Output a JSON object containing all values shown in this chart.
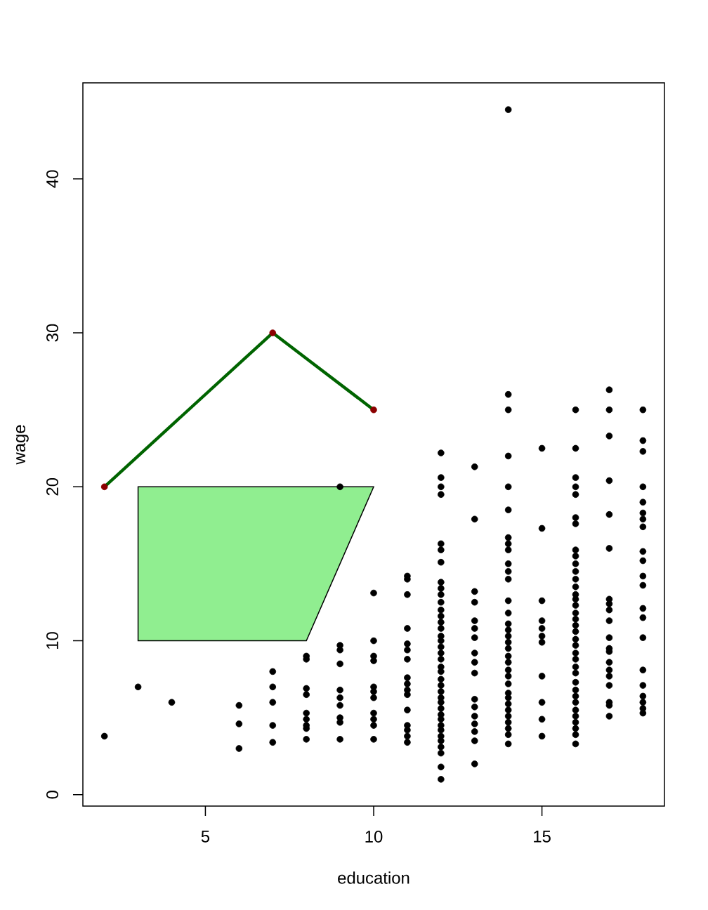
{
  "chart_data": {
    "type": "scatter",
    "xlabel": "education",
    "ylabel": "wage",
    "xlim": [
      1.36,
      18.64
    ],
    "ylim": [
      -0.74,
      46.24
    ],
    "xticks": [
      5,
      10,
      15
    ],
    "yticks": [
      0,
      10,
      20,
      30,
      40
    ],
    "series": [
      {
        "type": "area",
        "color": "#90ee90",
        "x": [
          3,
          3,
          10,
          8
        ],
        "values": [
          10,
          20,
          20,
          10
        ]
      },
      {
        "color": "#000000",
        "marker": "circle",
        "x": [
          2,
          3,
          4,
          6,
          6,
          6,
          7,
          7,
          7,
          7,
          7,
          8,
          8,
          8,
          8,
          8,
          8,
          8,
          8,
          8,
          9,
          9,
          9,
          9,
          9,
          9,
          9,
          9,
          9,
          9,
          10,
          10,
          10,
          10,
          10,
          10,
          10,
          10,
          10,
          10,
          10,
          11,
          11,
          11,
          11,
          11,
          11,
          11,
          11,
          11,
          11,
          11,
          11,
          11,
          11,
          11,
          11,
          12,
          12,
          12,
          12,
          12,
          12,
          12,
          12,
          12,
          12,
          12,
          12,
          12,
          12,
          12,
          12,
          12,
          12,
          12,
          12,
          12,
          12,
          12,
          12,
          12,
          12,
          12,
          12,
          12,
          12,
          12,
          12,
          12,
          12,
          12,
          12,
          12,
          12,
          13,
          13,
          13,
          13,
          13,
          13,
          13,
          13,
          13,
          13,
          13,
          13,
          13,
          13,
          13,
          13,
          13,
          14,
          14,
          14,
          14,
          14,
          14,
          14,
          14,
          14,
          14,
          14,
          14,
          14,
          14,
          14,
          14,
          14,
          14,
          14,
          14,
          14,
          14,
          14,
          14,
          14,
          14,
          14,
          14,
          14,
          14,
          14,
          14,
          14,
          15,
          15,
          15,
          15,
          15,
          15,
          15,
          15,
          15,
          15,
          15,
          16,
          16,
          16,
          16,
          16,
          16,
          16,
          16,
          16,
          16,
          16,
          16,
          16,
          16,
          16,
          16,
          16,
          16,
          16,
          16,
          16,
          16,
          16,
          16,
          16,
          16,
          16,
          16,
          16,
          16,
          16,
          16,
          16,
          16,
          16,
          16,
          17,
          17,
          17,
          17,
          17,
          17,
          17,
          17,
          17,
          17,
          17,
          17,
          17,
          17,
          17,
          17,
          17,
          17,
          17,
          17,
          18,
          18,
          18,
          18,
          18,
          18,
          18,
          18,
          18,
          18,
          18,
          18,
          18,
          18,
          18,
          18,
          18,
          18,
          18,
          18,
          18
        ],
        "values": [
          3.8,
          7.0,
          6.0,
          5.8,
          4.6,
          3.0,
          8.0,
          7.0,
          6.0,
          4.5,
          3.4,
          9.0,
          8.8,
          6.9,
          6.5,
          5.3,
          4.9,
          4.5,
          4.3,
          3.6,
          20.0,
          9.7,
          9.4,
          8.5,
          6.8,
          6.3,
          5.8,
          5.0,
          4.7,
          3.6,
          13.1,
          10.0,
          9.0,
          8.7,
          7.0,
          6.7,
          6.3,
          5.3,
          4.9,
          4.5,
          3.6,
          14.2,
          14.0,
          13.0,
          10.8,
          9.8,
          9.4,
          8.8,
          7.6,
          7.2,
          6.8,
          6.5,
          5.5,
          4.5,
          4.2,
          3.8,
          3.4,
          22.2,
          20.6,
          20.0,
          19.5,
          16.3,
          15.9,
          15.1,
          13.8,
          13.4,
          13.0,
          12.5,
          12.0,
          11.6,
          11.2,
          10.8,
          10.3,
          10.0,
          9.6,
          9.2,
          8.8,
          8.3,
          8.0,
          7.5,
          7.1,
          6.7,
          6.3,
          6.0,
          5.6,
          5.2,
          4.9,
          4.5,
          4.2,
          3.8,
          3.5,
          3.1,
          2.7,
          1.8,
          1.0,
          21.3,
          17.9,
          13.2,
          12.5,
          11.3,
          10.8,
          10.2,
          9.2,
          8.6,
          7.9,
          6.2,
          5.7,
          5.1,
          4.6,
          4.1,
          3.5,
          2.0,
          44.5,
          26.0,
          25.0,
          22.0,
          20.0,
          18.5,
          16.7,
          16.3,
          15.9,
          15.0,
          14.5,
          14.0,
          12.6,
          11.8,
          11.1,
          10.7,
          10.3,
          9.9,
          9.5,
          9.0,
          8.6,
          8.1,
          7.7,
          7.2,
          6.6,
          6.3,
          5.9,
          5.5,
          5.1,
          4.7,
          4.3,
          3.9,
          3.3,
          22.5,
          17.3,
          12.6,
          11.3,
          10.8,
          10.3,
          9.9,
          7.7,
          6.0,
          4.9,
          3.8,
          25.0,
          22.5,
          20.6,
          20.0,
          19.5,
          18.0,
          17.6,
          15.9,
          15.5,
          15.0,
          14.5,
          14.0,
          13.5,
          13.0,
          12.7,
          12.3,
          11.8,
          11.4,
          11.0,
          10.6,
          10.1,
          9.7,
          9.2,
          8.8,
          8.3,
          7.9,
          7.3,
          6.8,
          6.4,
          6.0,
          5.5,
          5.1,
          4.7,
          4.3,
          3.9,
          3.3,
          26.3,
          25.0,
          23.3,
          20.4,
          18.2,
          16.0,
          12.7,
          12.4,
          12.0,
          11.3,
          10.2,
          9.5,
          9.3,
          8.6,
          8.1,
          7.7,
          7.1,
          6.0,
          5.8,
          5.1,
          25.0,
          23.0,
          22.3,
          20.0,
          19.0,
          18.3,
          17.9,
          17.4,
          15.8,
          15.2,
          14.2,
          13.6,
          12.1,
          11.5,
          10.2,
          8.1,
          7.1,
          6.4,
          6.0,
          5.6,
          5.3
        ]
      },
      {
        "type": "line",
        "color": "#006400",
        "marker": "none",
        "x": [
          2,
          7,
          10
        ],
        "values": [
          20,
          30,
          25
        ]
      },
      {
        "type": "scatter",
        "color": "#8b0000",
        "marker": "circle",
        "x": [
          2,
          7,
          10
        ],
        "values": [
          20,
          30,
          25
        ]
      }
    ]
  }
}
